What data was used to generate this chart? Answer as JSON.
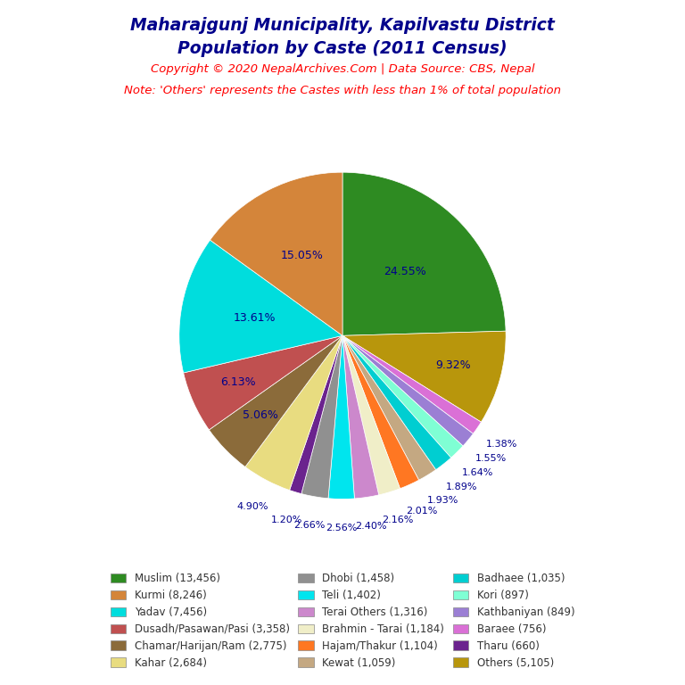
{
  "title_line1": "Maharajgunj Municipality, Kapilvastu District",
  "title_line2": "Population by Caste (2011 Census)",
  "title_color": "#00008B",
  "copyright_text": "Copyright © 2020 NepalArchives.Com | Data Source: CBS, Nepal",
  "note_text": "Note: 'Others' represents the Castes with less than 1% of total population",
  "copyright_color": "#FF0000",
  "note_color": "#FF0000",
  "background_color": "#FFFFFF",
  "pie_slices_clockwise_from_top": [
    {
      "label": "Muslim (13,456)",
      "value": 13456,
      "color": "#2E8B22",
      "pct_label": "24.55%",
      "label_inside": true
    },
    {
      "label": "Others (5,105)",
      "value": 5105,
      "color": "#B8960C",
      "pct_label": "9.32%",
      "label_inside": false
    },
    {
      "label": "Baraee (756)",
      "value": 756,
      "color": "#DA70D6",
      "pct_label": "1.38%",
      "label_inside": false
    },
    {
      "label": "Kathbaniyan (849)",
      "value": 849,
      "color": "#9B7FD4",
      "pct_label": "1.55%",
      "label_inside": false
    },
    {
      "label": "Kori (897)",
      "value": 897,
      "color": "#7FFFD4",
      "pct_label": "1.64%",
      "label_inside": false
    },
    {
      "label": "Badhaee (1,035)",
      "value": 1035,
      "color": "#00CED1",
      "pct_label": "1.89%",
      "label_inside": false
    },
    {
      "label": "Kewat (1,059)",
      "value": 1059,
      "color": "#C4A882",
      "pct_label": "1.93%",
      "label_inside": false
    },
    {
      "label": "Hajam/Thakur (1,104)",
      "value": 1104,
      "color": "#FF7722",
      "pct_label": "2.01%",
      "label_inside": false
    },
    {
      "label": "Brahmin - Tarai (1,184)",
      "value": 1184,
      "color": "#F0EEC8",
      "pct_label": "2.16%",
      "label_inside": false
    },
    {
      "label": "Terai Others (1,316)",
      "value": 1316,
      "color": "#CC88CC",
      "pct_label": "2.40%",
      "label_inside": false
    },
    {
      "label": "Teli (1,402)",
      "value": 1402,
      "color": "#00E5EE",
      "pct_label": "2.56%",
      "label_inside": false
    },
    {
      "label": "Dhobi (1,458)",
      "value": 1458,
      "color": "#909090",
      "pct_label": "2.66%",
      "label_inside": false
    },
    {
      "label": "Tharu (660)",
      "value": 660,
      "color": "#6B238E",
      "pct_label": "1.20%",
      "label_inside": false
    },
    {
      "label": "Kahar (2,684)",
      "value": 2684,
      "color": "#E8DC80",
      "pct_label": "4.90%",
      "label_inside": false
    },
    {
      "label": "Chamar/Harijan/Ram (2,775)",
      "value": 2775,
      "color": "#8B6B3A",
      "pct_label": "5.06%",
      "label_inside": false
    },
    {
      "label": "Dusadh/Pasawan/Pasi (3,358)",
      "value": 3358,
      "color": "#C05050",
      "pct_label": "6.13%",
      "label_inside": false
    },
    {
      "label": "Yadav (7,456)",
      "value": 7456,
      "color": "#00DDDD",
      "pct_label": "13.61%",
      "label_inside": true
    },
    {
      "label": "Kurmi (8,246)",
      "value": 8246,
      "color": "#D4853A",
      "pct_label": "15.05%",
      "label_inside": true
    }
  ],
  "legend_order": [
    {
      "label": "Muslim (13,456)",
      "color": "#2E8B22"
    },
    {
      "label": "Kurmi (8,246)",
      "color": "#D4853A"
    },
    {
      "label": "Yadav (7,456)",
      "color": "#00DDDD"
    },
    {
      "label": "Dusadh/Pasawan/Pasi (3,358)",
      "color": "#C05050"
    },
    {
      "label": "Chamar/Harijan/Ram (2,775)",
      "color": "#8B6B3A"
    },
    {
      "label": "Kahar (2,684)",
      "color": "#E8DC80"
    },
    {
      "label": "Dhobi (1,458)",
      "color": "#909090"
    },
    {
      "label": "Teli (1,402)",
      "color": "#00E5EE"
    },
    {
      "label": "Terai Others (1,316)",
      "color": "#CC88CC"
    },
    {
      "label": "Brahmin - Tarai (1,184)",
      "color": "#F0EEC8"
    },
    {
      "label": "Hajam/Thakur (1,104)",
      "color": "#FF7722"
    },
    {
      "label": "Kewat (1,059)",
      "color": "#C4A882"
    },
    {
      "label": "Badhaee (1,035)",
      "color": "#00CED1"
    },
    {
      "label": "Kori (897)",
      "color": "#7FFFD4"
    },
    {
      "label": "Kathbaniyan (849)",
      "color": "#9B7FD4"
    },
    {
      "label": "Baraee (756)",
      "color": "#DA70D6"
    },
    {
      "label": "Tharu (660)",
      "color": "#6B238E"
    },
    {
      "label": "Others (5,105)",
      "color": "#B8960C"
    }
  ]
}
